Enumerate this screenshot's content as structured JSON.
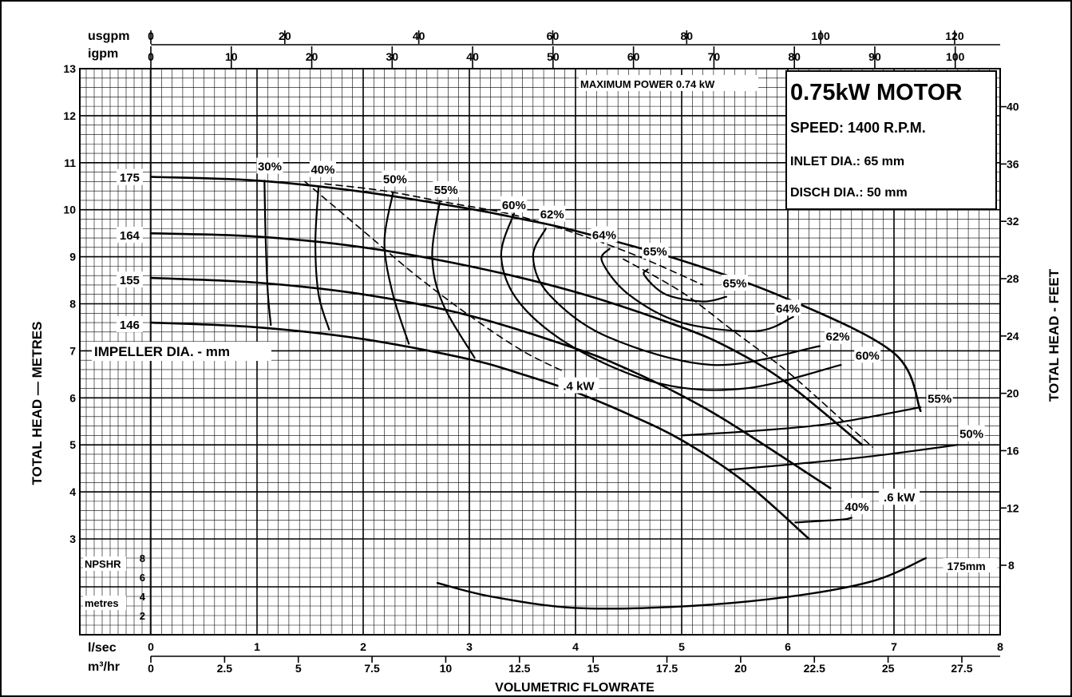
{
  "chart_data": {
    "type": "line",
    "motor_title": "0.75kW MOTOR",
    "speed": "SPEED: 1400 R.P.M.",
    "inlet": "INLET DIA.: 65 mm",
    "disch": "DISCH DIA.: 50 mm",
    "max_power": "MAXIMUM POWER 0.74 kW",
    "xlabel": "VOLUMETRIC FLOWRATE",
    "ylabel_left": "TOTAL HEAD — METRES",
    "ylabel_right": "TOTAL HEAD - FEET",
    "impeller_label": "IMPELLER DIA. - mm",
    "npsh_label_1": "NPSHR",
    "npsh_label_2": "metres",
    "unit_usgpm": "usgpm",
    "unit_igpm": "igpm",
    "unit_lsec": "l/sec",
    "unit_m3hr": "m³/hr",
    "usgpm_ticks": [
      "0",
      "20",
      "40",
      "60",
      "80",
      "100",
      "120"
    ],
    "igpm_ticks": [
      "0",
      "10",
      "20",
      "30",
      "40",
      "50",
      "60",
      "70",
      "80",
      "90",
      "100"
    ],
    "lsec_ticks": [
      "0",
      "1",
      "2",
      "3",
      "4",
      "5",
      "6",
      "7",
      "8"
    ],
    "m3hr_ticks": [
      "0",
      "2.5",
      "5",
      "7.5",
      "10",
      "12.5",
      "15",
      "17.5",
      "20",
      "22.5",
      "25",
      "27.5"
    ],
    "head_m_ticks": [
      "3",
      "4",
      "5",
      "6",
      "7",
      "8",
      "9",
      "10",
      "11",
      "12",
      "13"
    ],
    "head_ft_ticks": [
      "12",
      "16",
      "20",
      "24",
      "28",
      "32",
      "36",
      "40"
    ],
    "npsh_ticks": [
      "2",
      "4",
      "6",
      "8"
    ],
    "npsh_ylim": [
      0,
      10
    ],
    "xlim_lsec": [
      0,
      8
    ],
    "ylim_head_m": [
      3,
      13
    ],
    "impeller_curves": [
      {
        "name": "175",
        "x": [
          0,
          1,
          2,
          3,
          3.5,
          4,
          5,
          6,
          7,
          7.25
        ],
        "y": [
          10.7,
          10.62,
          10.38,
          10.02,
          9.8,
          9.55,
          8.92,
          8.1,
          6.95,
          5.72
        ]
      },
      {
        "name": "164",
        "x": [
          0,
          1,
          2,
          3,
          4,
          5,
          5.5,
          6,
          6.7
        ],
        "y": [
          9.5,
          9.43,
          9.2,
          8.8,
          8.25,
          7.5,
          7.0,
          6.3,
          5.0
        ]
      },
      {
        "name": "155",
        "x": [
          0,
          1,
          2,
          3,
          4,
          4.5,
          5,
          5.5,
          6.4
        ],
        "y": [
          8.55,
          8.45,
          8.2,
          7.75,
          7.05,
          6.6,
          6.05,
          5.4,
          4.08
        ]
      },
      {
        "name": "146",
        "x": [
          0,
          1,
          2,
          3,
          3.5,
          4,
          4.5,
          5,
          5.6,
          6.2
        ],
        "y": [
          7.6,
          7.5,
          7.25,
          6.82,
          6.5,
          6.12,
          5.65,
          5.1,
          4.2,
          3.0
        ]
      }
    ],
    "efficiency_curves": [
      {
        "label": "30%",
        "x": [
          1.07,
          1.08,
          1.1,
          1.13
        ],
        "y": [
          10.62,
          9.5,
          8.3,
          7.55
        ]
      },
      {
        "label": "40%",
        "x": [
          1.58,
          1.55,
          1.58,
          1.68
        ],
        "y": [
          10.5,
          9.3,
          8.2,
          7.45
        ]
      },
      {
        "label": "50%",
        "x": [
          2.28,
          2.2,
          2.28,
          2.43
        ],
        "y": [
          10.35,
          9.3,
          8.2,
          7.15
        ]
      },
      {
        "label": "55%",
        "x": [
          2.72,
          2.65,
          2.75,
          3.05
        ],
        "y": [
          10.15,
          9.0,
          8.0,
          6.85
        ]
      },
      {
        "label": "60%",
        "x": [
          3.42,
          3.3,
          3.48,
          4.0,
          4.8,
          5.6,
          6.5
        ],
        "y": [
          9.92,
          9.0,
          8.0,
          7.05,
          6.3,
          6.2,
          6.7
        ]
      },
      {
        "label": "62%",
        "x": [
          3.72,
          3.6,
          3.75,
          4.3,
          5.3,
          6.3
        ],
        "y": [
          9.6,
          9.0,
          8.2,
          7.3,
          6.7,
          7.1
        ]
      },
      {
        "label": "64%",
        "x": [
          4.32,
          4.25,
          4.5,
          5.0,
          5.7,
          6.05
        ],
        "y": [
          9.17,
          8.9,
          8.2,
          7.6,
          7.42,
          7.72
        ]
      },
      {
        "label": "65%",
        "x": [
          4.68,
          4.65,
          4.85,
          5.2,
          5.42
        ],
        "y": [
          8.73,
          8.6,
          8.2,
          8.05,
          8.15
        ]
      }
    ],
    "power_curves": [
      {
        "label": ".4 kW",
        "x": [
          1.45,
          2.0,
          2.5,
          3.0,
          3.5,
          3.9
        ],
        "y": [
          10.6,
          9.55,
          8.6,
          7.75,
          7.0,
          6.55
        ]
      },
      {
        "label": ".6 kW",
        "x": [
          4.45,
          5.0,
          5.5,
          6.0,
          6.5,
          6.8
        ],
        "y": [
          8.95,
          8.25,
          7.4,
          6.55,
          5.55,
          4.95
        ]
      }
    ],
    "max_power_line": {
      "x": [
        1.64,
        2.2,
        2.8,
        3.4,
        4.0,
        4.6,
        5.2
      ],
      "y": [
        10.55,
        10.4,
        10.15,
        9.9,
        9.5,
        9.0,
        8.4
      ]
    },
    "tail_curves": [
      {
        "label": "55%",
        "x": [
          5.0,
          5.7,
          6.4,
          7.25
        ],
        "y": [
          5.2,
          5.3,
          5.45,
          5.8
        ]
      },
      {
        "label": "50%",
        "x": [
          5.45,
          6.1,
          6.8,
          7.6
        ],
        "y": [
          4.47,
          4.6,
          4.76,
          5.0
        ]
      },
      {
        "label": "40%",
        "x": [
          6.07,
          6.5,
          6.6
        ],
        "y": [
          3.35,
          3.41,
          3.45
        ]
      }
    ],
    "npsh_curve": {
      "name": "175mm",
      "x": [
        2.7,
        3.2,
        4.0,
        5.0,
        6.0,
        6.8,
        7.3
      ],
      "y": [
        5.4,
        4.0,
        2.8,
        2.95,
        3.95,
        5.6,
        8.0
      ]
    },
    "label_items": [
      {
        "text": "175",
        "x": -0.2,
        "y": 10.68
      },
      {
        "text": "164",
        "x": -0.2,
        "y": 9.45
      },
      {
        "text": "155",
        "x": -0.2,
        "y": 8.5
      },
      {
        "text": "146",
        "x": -0.2,
        "y": 7.55
      },
      {
        "text": "30%",
        "x": 1.12,
        "y": 10.92
      },
      {
        "text": "40%",
        "x": 1.62,
        "y": 10.85
      },
      {
        "text": "50%",
        "x": 2.3,
        "y": 10.65
      },
      {
        "text": "55%",
        "x": 2.78,
        "y": 10.42
      },
      {
        "text": "60%",
        "x": 3.42,
        "y": 10.1
      },
      {
        "text": "62%",
        "x": 3.78,
        "y": 9.9
      },
      {
        "text": "64%",
        "x": 4.27,
        "y": 9.46
      },
      {
        "text": "65%",
        "x": 4.75,
        "y": 9.11
      },
      {
        "text": "65%",
        "x": 5.5,
        "y": 8.43
      },
      {
        "text": "64%",
        "x": 6.0,
        "y": 7.9
      },
      {
        "text": "62%",
        "x": 6.47,
        "y": 7.3
      },
      {
        "text": "60%",
        "x": 6.75,
        "y": 6.9
      },
      {
        "text": "55%",
        "x": 7.43,
        "y": 5.98
      },
      {
        "text": "50%",
        "x": 7.73,
        "y": 5.23
      },
      {
        "text": "40%",
        "x": 6.65,
        "y": 3.68
      },
      {
        "text": ".4 kW",
        "x": 4.03,
        "y": 6.25
      },
      {
        "text": ".6 kW",
        "x": 7.05,
        "y": 3.88
      }
    ]
  }
}
